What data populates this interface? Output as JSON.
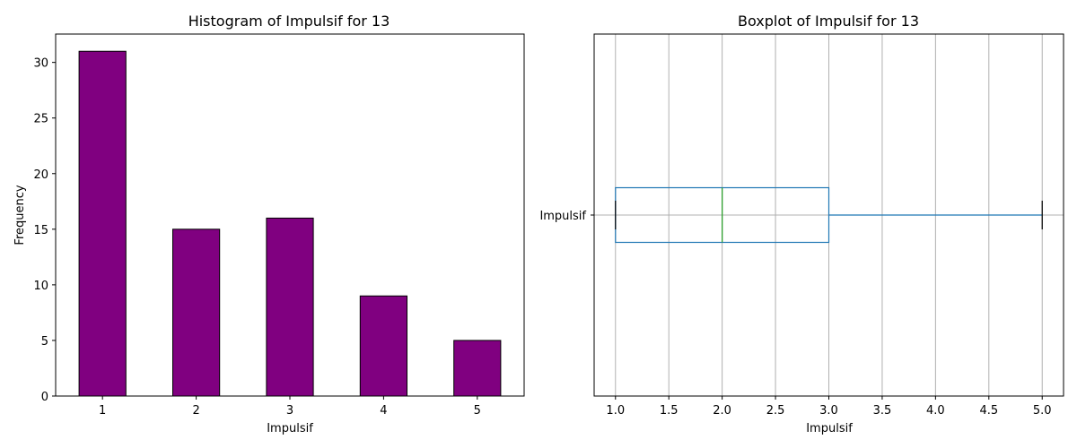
{
  "chart_data": [
    {
      "type": "bar",
      "title": "Histogram of Impulsif for 13",
      "xlabel": "Impulsif",
      "ylabel": "Frequency",
      "categories": [
        "1",
        "2",
        "3",
        "4",
        "5"
      ],
      "values": [
        31,
        15,
        16,
        9,
        5
      ],
      "ylim": [
        0,
        32.55
      ],
      "yticks": [
        0,
        5,
        10,
        15,
        20,
        25,
        30
      ],
      "grid": false,
      "colors": {
        "bar_fill": "#800080",
        "bar_edge": "#000000"
      }
    },
    {
      "type": "boxplot",
      "title": "Boxplot of Impulsif for 13",
      "xlabel": "Impulsif",
      "category": "Impulsif",
      "orientation": "horizontal",
      "stats": {
        "whisker_low": 1.0,
        "q1": 1.0,
        "median": 2.0,
        "q3": 3.0,
        "whisker_high": 5.0
      },
      "xlim": [
        0.8,
        5.2
      ],
      "xticks": [
        "1.0",
        "1.5",
        "2.0",
        "2.5",
        "3.0",
        "3.5",
        "4.0",
        "4.5",
        "5.0"
      ],
      "grid": true,
      "colors": {
        "box": "#1f77b4",
        "median": "#2ca02c",
        "cap": "#000000",
        "grid": "#b0b0b0"
      }
    }
  ]
}
